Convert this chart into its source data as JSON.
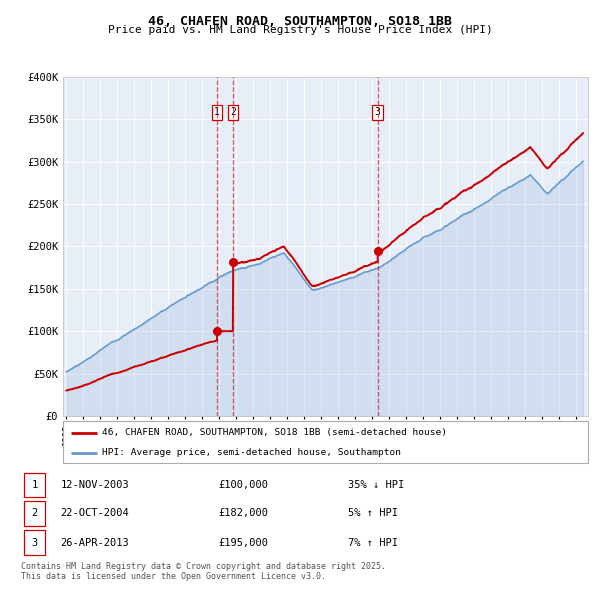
{
  "title": "46, CHAFEN ROAD, SOUTHAMPTON, SO18 1BB",
  "subtitle": "Price paid vs. HM Land Registry's House Price Index (HPI)",
  "legend_line1": "46, CHAFEN ROAD, SOUTHAMPTON, SO18 1BB (semi-detached house)",
  "legend_line2": "HPI: Average price, semi-detached house, Southampton",
  "footer": "Contains HM Land Registry data © Crown copyright and database right 2025.\nThis data is licensed under the Open Government Licence v3.0.",
  "transactions": [
    {
      "id": 1,
      "date": "12-NOV-2003",
      "price": 100000,
      "hpi_pct": "35%",
      "hpi_dir": "↓"
    },
    {
      "id": 2,
      "date": "22-OCT-2004",
      "price": 182000,
      "hpi_pct": "5%",
      "hpi_dir": "↑"
    },
    {
      "id": 3,
      "date": "26-APR-2013",
      "price": 195000,
      "hpi_pct": "7%",
      "hpi_dir": "↑"
    }
  ],
  "sale1_x": 2003.87,
  "sale1_y": 100000,
  "sale2_x": 2004.81,
  "sale2_y": 182000,
  "sale3_x": 2013.32,
  "sale3_y": 195000,
  "red_line_color": "#cc0000",
  "blue_line_color": "#6699cc",
  "bg_color": "#e8eef8",
  "vline_color": "#cc0000",
  "ylim": [
    0,
    400000
  ],
  "yticks": [
    0,
    50000,
    100000,
    150000,
    200000,
    250000,
    300000,
    350000,
    400000
  ],
  "ytick_labels": [
    "£0",
    "£50K",
    "£100K",
    "£150K",
    "£200K",
    "£250K",
    "£300K",
    "£350K",
    "£400K"
  ],
  "xlim_start": 1994.8,
  "xlim_end": 2025.7
}
